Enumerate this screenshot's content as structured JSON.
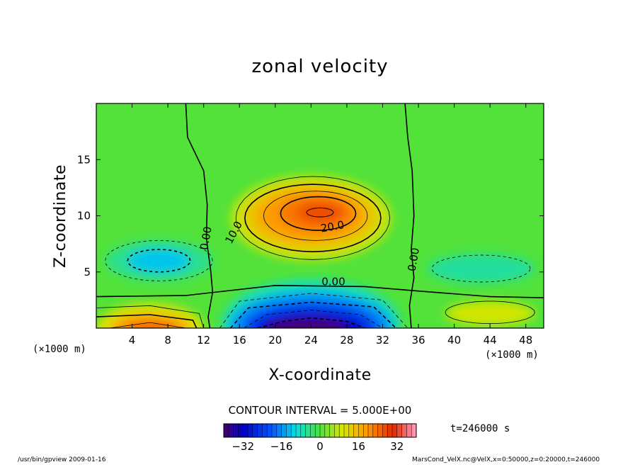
{
  "chart_data": {
    "type": "heatmap",
    "title": "zonal velocity",
    "xlabel": "X-coordinate",
    "ylabel": "Z-coordinate",
    "x_unit": "(×1000 m)",
    "y_unit": "(×1000 m)",
    "xlim": [
      0,
      50
    ],
    "ylim": [
      0,
      20
    ],
    "x_ticks": [
      4,
      8,
      12,
      16,
      20,
      24,
      28,
      32,
      36,
      40,
      44,
      48
    ],
    "y_ticks": [
      5,
      10,
      15
    ],
    "contour_interval_text": "CONTOUR INTERVAL = 5.000E+00",
    "contour_interval": 5,
    "contour_labels": [
      {
        "text": "0.00",
        "x": 12.3,
        "z": 8.0,
        "rotate": -80
      },
      {
        "text": "10.0",
        "x": 15.4,
        "z": 8.5,
        "rotate": -62
      },
      {
        "text": "20.0",
        "x": 26.4,
        "z": 9.0,
        "rotate": -10
      },
      {
        "text": "0.00",
        "x": 26.5,
        "z": 4.1,
        "rotate": 0
      },
      {
        "text": "0.00",
        "x": 35.5,
        "z": 6.1,
        "rotate": -80
      }
    ],
    "colorbar": {
      "range": [
        -40,
        40
      ],
      "ticks": [
        -32,
        -16,
        0,
        16,
        32
      ]
    },
    "time_label": "t=246000 s",
    "field_features": [
      {
        "kind": "jet",
        "x": 24,
        "z": 10,
        "peak": 28
      },
      {
        "kind": "surface_reverse_flow",
        "x": 24,
        "z": 0,
        "peak": -40
      },
      {
        "kind": "surface_flow",
        "x": 6,
        "z": 0,
        "peak": 25
      },
      {
        "kind": "weak_negative",
        "x": 7,
        "z": 6,
        "peak": -12
      },
      {
        "kind": "weak_negative",
        "x": 43,
        "z": 5.3,
        "peak": -8
      }
    ]
  },
  "footer": {
    "left": "/usr/bin/gpview 2009-01-16",
    "right": "MarsCond_VelX.nc@VelX,x=0:50000,z=0:20000,t=246000"
  }
}
